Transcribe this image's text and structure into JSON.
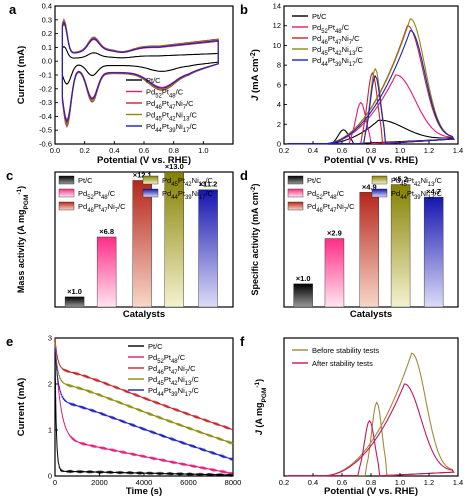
{
  "panels": {
    "a": {
      "letter": "a"
    },
    "b": {
      "letter": "b"
    },
    "c": {
      "letter": "c"
    },
    "d": {
      "letter": "d"
    },
    "e": {
      "letter": "e"
    },
    "f": {
      "letter": "f"
    }
  },
  "chart_data": [
    {
      "panel": "a",
      "type": "line",
      "xlabel": "Potential (V vs. RHE)",
      "ylabel": "Current (mA)",
      "xlim": [
        0,
        1.2
      ],
      "ylim": [
        -0.6,
        0.4
      ],
      "xticks": [
        "0.0",
        "0.2",
        "0.4",
        "0.6",
        "0.8",
        "1.0"
      ],
      "yticks": [
        "-0.6",
        "-0.5",
        "-0.4",
        "-0.3",
        "-0.2",
        "-0.1",
        "0.0",
        "0.1",
        "0.2",
        "0.3",
        "0.4"
      ],
      "legend_position": "right",
      "series": [
        {
          "name": "Pt/C",
          "color": "#000000",
          "scale": 0.35
        },
        {
          "name": "Pd52Pt48/C",
          "color": "#e6197a",
          "scale": 0.9
        },
        {
          "name": "Pd46Pt47Ni7/C",
          "color": "#c1272d",
          "scale": 1.0
        },
        {
          "name": "Pd45Pt42Ni13/C",
          "color": "#8c8c0a",
          "scale": 0.97
        },
        {
          "name": "Pd44Pt39Ni17/C",
          "color": "#1f1fc0",
          "scale": 0.93
        }
      ],
      "legend_labels": [
        {
          "base": "Pt/C",
          "parts": [
            [
              "Pt/C",
              false
            ]
          ]
        },
        {
          "parts": [
            [
              "Pd",
              false
            ],
            [
              "52",
              true
            ],
            [
              "Pt",
              false
            ],
            [
              "48",
              true
            ],
            [
              "/C",
              false
            ]
          ]
        },
        {
          "parts": [
            [
              "Pd",
              false
            ],
            [
              "46",
              true
            ],
            [
              "Pt",
              false
            ],
            [
              "47",
              true
            ],
            [
              "Ni",
              false
            ],
            [
              "7",
              true
            ],
            [
              "/C",
              false
            ]
          ]
        },
        {
          "parts": [
            [
              "Pd",
              false
            ],
            [
              "45",
              true
            ],
            [
              "Pt",
              false
            ],
            [
              "42",
              true
            ],
            [
              "Ni",
              false
            ],
            [
              "13",
              true
            ],
            [
              "/C",
              false
            ]
          ]
        },
        {
          "parts": [
            [
              "Pd",
              false
            ],
            [
              "44",
              true
            ],
            [
              "Pt",
              false
            ],
            [
              "39",
              true
            ],
            [
              "Ni",
              false
            ],
            [
              "17",
              true
            ],
            [
              "/C",
              false
            ]
          ]
        }
      ]
    },
    {
      "panel": "b",
      "type": "line",
      "xlabel": "Potential (V vs. RHE)",
      "ylabel": "J (mA cm-2)",
      "xlim": [
        0.2,
        1.4
      ],
      "ylim": [
        0,
        14
      ],
      "xticks": [
        "0.2",
        "0.4",
        "0.6",
        "0.8",
        "1.0",
        "1.2",
        "1.4"
      ],
      "yticks": [
        "0",
        "2",
        "4",
        "6",
        "8",
        "10",
        "12",
        "14"
      ],
      "legend_position": "top-left",
      "series": [
        {
          "name": "Pt/C",
          "color": "#000000",
          "peak_x": 0.85,
          "peak_y": 2.4
        },
        {
          "name": "Pd52Pt48/C",
          "color": "#e6197a",
          "peak_x": 0.97,
          "peak_y": 7.0
        },
        {
          "name": "Pd46Pt47Ni7/C",
          "color": "#c1272d",
          "peak_x": 1.05,
          "peak_y": 12.0
        },
        {
          "name": "Pd45Pt42Ni13/C",
          "color": "#8c8c0a",
          "peak_x": 1.07,
          "peak_y": 12.7
        },
        {
          "name": "Pd44Pt39Ni17/C",
          "color": "#1f1fc0",
          "peak_x": 1.07,
          "peak_y": 11.5
        }
      ]
    },
    {
      "panel": "c",
      "type": "bar",
      "xlabel": "Catalysts",
      "ylabel": "Mass activity (A mgPGM-1)",
      "ylim": [
        0,
        16
      ],
      "categories": [
        "Pt/C",
        "Pd52Pt48/C",
        "Pd46Pt47Ni7/C",
        "Pd45Pt42Ni13/C",
        "Pd44Pt39Ni17/C"
      ],
      "values": [
        1.2,
        8.3,
        15.0,
        16.0,
        13.9
      ],
      "data_labels": [
        "×1.0",
        "×6.8",
        "×12.1",
        "×13.0",
        "×11.2"
      ]
    },
    {
      "panel": "d",
      "type": "bar",
      "xlabel": "Catalysts",
      "ylabel": "Specific activity (mA cm-2)",
      "ylim": [
        0,
        14
      ],
      "categories": [
        "Pt/C",
        "Pd52Pt48/C",
        "Pd46Pt47Ni7/C",
        "Pd45Pt42Ni13/C",
        "Pd44Pt39Ni17/C"
      ],
      "values": [
        2.4,
        7.1,
        11.9,
        12.7,
        11.4
      ],
      "data_labels": [
        "×1.0",
        "×2.9",
        "×4.9",
        "×5.2",
        "×4.7"
      ]
    },
    {
      "panel": "e",
      "type": "line",
      "xlabel": "Time (s)",
      "ylabel": "Current (mA)",
      "xlim": [
        0,
        8000
      ],
      "ylim": [
        0,
        3
      ],
      "xticks": [
        "0",
        "2000",
        "4000",
        "6000",
        "8000"
      ],
      "yticks": [
        "0",
        "1",
        "2",
        "3"
      ],
      "legend_position": "top-right",
      "series": [
        {
          "name": "Pt/C",
          "color": "#000000",
          "start": 2.6,
          "plateau": 0.1,
          "end": 0.02,
          "tau": 60
        },
        {
          "name": "Pd52Pt48/C",
          "color": "#e6197a",
          "start": 2.9,
          "plateau": 0.75,
          "end": 0.05,
          "tau": 250
        },
        {
          "name": "Pd46Pt47Ni7/C",
          "color": "#c1272d",
          "start": 3.0,
          "plateau": 2.3,
          "end": 1.0,
          "tau": 120
        },
        {
          "name": "Pd45Pt42Ni13/C",
          "color": "#8c8c0a",
          "start": 2.9,
          "plateau": 2.0,
          "end": 0.7,
          "tau": 120
        },
        {
          "name": "Pd44Pt39Ni17/C",
          "color": "#1f1fc0",
          "start": 2.8,
          "plateau": 1.6,
          "end": 0.35,
          "tau": 150
        }
      ]
    },
    {
      "panel": "f",
      "type": "line",
      "xlabel": "Potential (V vs. RHE)",
      "ylabel": "J (A mgPGM-1)",
      "xlim": [
        0.2,
        1.4
      ],
      "ylim": [
        0,
        18
      ],
      "xticks": [
        "0.2",
        "0.4",
        "0.6",
        "0.8",
        "1.0",
        "1.2",
        "1.4"
      ],
      "legend_position": "top-left",
      "series": [
        {
          "name": "Before stability tests",
          "color": "#a08a3c",
          "peak_x": 1.08,
          "peak_y": 16.0
        },
        {
          "name": "After stability tests",
          "color": "#c2185b",
          "peak_x": 1.03,
          "peak_y": 12.0
        }
      ]
    }
  ]
}
